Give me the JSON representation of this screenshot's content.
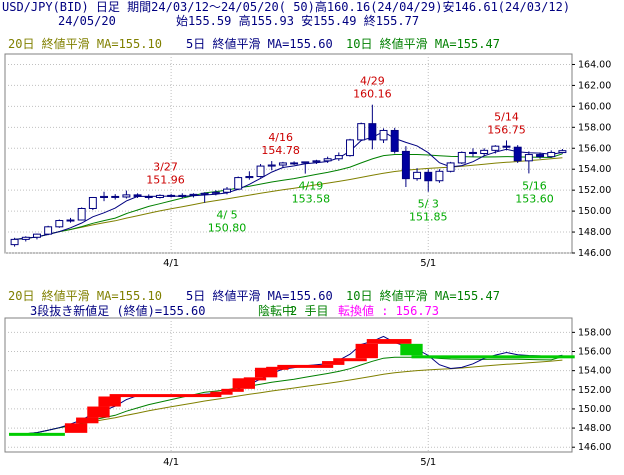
{
  "header": {
    "line1": "USD/JPY(BID) 日足 期間24/03/12～24/05/20( 50)高160.16(24/04/29)安146.61(24/03/12)",
    "line2": "24/05/20",
    "line2_ohlc": "始155.59 高155.93 安155.49 終155.77"
  },
  "legend": {
    "ma20": "20日 終値平滑 MA=155.10",
    "ma5": "5日 終値平滑 MA=155.60",
    "ma10": "10日 終値平滑 MA=155.47",
    "ma20_color": "#808000",
    "ma5_color": "#000080",
    "ma10_color": "#008000"
  },
  "lower_info": {
    "label": "3段抜き新値足 (終値)=155.60",
    "status": "陰転中",
    "count": "2 手目",
    "reversal": "転換値 : 156.73",
    "label_color": "#000080",
    "status_color": "#008000",
    "reversal_color": "#ff00ff"
  },
  "chart_data": [
    {
      "type": "candlestick",
      "x_tick_labels": [
        "4/1",
        "5/1"
      ],
      "y_tick_labels": [
        "146.00",
        "148.00",
        "150.00",
        "152.00",
        "154.00",
        "156.00",
        "158.00",
        "160.00",
        "162.00",
        "164.00"
      ],
      "ylim": [
        146,
        165
      ],
      "ohlc": [
        [
          146.8,
          147.45,
          146.61,
          147.3
        ],
        [
          147.3,
          147.6,
          147.1,
          147.5
        ],
        [
          147.5,
          147.85,
          147.3,
          147.8
        ],
        [
          147.8,
          148.6,
          147.7,
          148.5
        ],
        [
          148.5,
          149.2,
          148.4,
          149.1
        ],
        [
          149.1,
          149.35,
          148.9,
          149.15
        ],
        [
          149.15,
          150.35,
          149.1,
          150.25
        ],
        [
          150.25,
          151.35,
          150.1,
          151.3
        ],
        [
          151.3,
          151.85,
          150.95,
          151.4
        ],
        [
          151.4,
          151.62,
          151.1,
          151.35
        ],
        [
          151.35,
          151.96,
          151.2,
          151.55
        ],
        [
          151.55,
          151.7,
          151.25,
          151.4
        ],
        [
          151.4,
          151.6,
          151.1,
          151.3
        ],
        [
          151.3,
          151.6,
          151.2,
          151.5
        ],
        [
          151.5,
          151.65,
          151.3,
          151.4
        ],
        [
          151.4,
          151.7,
          151.2,
          151.5
        ],
        [
          151.5,
          151.7,
          151.3,
          151.6
        ],
        [
          151.6,
          151.8,
          150.8,
          151.7
        ],
        [
          151.7,
          152.0,
          151.5,
          151.8
        ],
        [
          151.8,
          152.3,
          151.6,
          152.1
        ],
        [
          152.1,
          153.3,
          152.0,
          153.2
        ],
        [
          153.2,
          153.8,
          153.0,
          153.3
        ],
        [
          153.3,
          154.5,
          153.2,
          154.3
        ],
        [
          154.3,
          154.78,
          153.9,
          154.4
        ],
        [
          154.4,
          154.7,
          154.1,
          154.6
        ],
        [
          154.6,
          154.75,
          154.4,
          154.6
        ],
        [
          154.6,
          154.72,
          153.58,
          154.7
        ],
        [
          154.7,
          154.9,
          154.5,
          154.8
        ],
        [
          154.8,
          155.2,
          154.6,
          155.0
        ],
        [
          155.0,
          155.6,
          154.8,
          155.3
        ],
        [
          155.3,
          156.9,
          155.2,
          156.8
        ],
        [
          156.8,
          158.45,
          156.7,
          158.35
        ],
        [
          158.35,
          160.16,
          155.9,
          156.8
        ],
        [
          156.8,
          157.9,
          156.5,
          157.7
        ],
        [
          157.7,
          157.95,
          155.5,
          155.7
        ],
        [
          155.7,
          156.2,
          152.3,
          153.1
        ],
        [
          153.1,
          154.1,
          152.9,
          153.7
        ],
        [
          153.7,
          154.0,
          151.85,
          152.9
        ],
        [
          152.9,
          154.0,
          152.7,
          153.8
        ],
        [
          153.8,
          154.7,
          153.7,
          154.6
        ],
        [
          154.6,
          155.7,
          154.5,
          155.6
        ],
        [
          155.6,
          156.0,
          155.2,
          155.5
        ],
        [
          155.5,
          156.0,
          155.3,
          155.8
        ],
        [
          155.8,
          156.3,
          155.5,
          156.2
        ],
        [
          156.2,
          156.75,
          155.8,
          156.1
        ],
        [
          156.1,
          156.3,
          154.6,
          154.8
        ],
        [
          154.8,
          155.7,
          153.6,
          155.4
        ],
        [
          155.4,
          155.6,
          155.0,
          155.2
        ],
        [
          155.2,
          155.8,
          155.1,
          155.6
        ],
        [
          155.59,
          155.93,
          155.49,
          155.77
        ]
      ],
      "ma5": [
        147.3,
        147.4,
        147.53,
        147.78,
        148.04,
        148.41,
        148.86,
        149.46,
        149.84,
        150.29,
        150.97,
        151.4,
        151.4,
        151.42,
        151.43,
        151.42,
        151.46,
        151.54,
        151.6,
        151.74,
        152.08,
        152.56,
        153.12,
        153.72,
        154.16,
        154.32,
        154.52,
        154.62,
        154.74,
        155.08,
        155.72,
        156.74,
        157.05,
        157.58,
        156.94,
        156.56,
        156.23,
        155.58,
        154.62,
        154.22,
        154.34,
        154.72,
        155.28,
        155.62,
        155.9,
        155.66,
        155.58,
        155.54,
        155.42,
        155.6
      ],
      "ma10": [
        147.3,
        147.4,
        147.53,
        147.78,
        148.04,
        148.24,
        148.52,
        148.84,
        149.09,
        149.33,
        149.76,
        150.11,
        150.45,
        150.71,
        150.97,
        151.24,
        151.48,
        151.74,
        151.86,
        152.01,
        152.22,
        152.38,
        152.58,
        152.78,
        152.94,
        153.1,
        153.3,
        153.5,
        153.7,
        153.92,
        154.2,
        154.6,
        154.98,
        155.3,
        155.4,
        155.4,
        155.4,
        155.36,
        155.28,
        155.22,
        155.2,
        155.18,
        155.17,
        155.18,
        155.2,
        155.18,
        155.16,
        155.14,
        155.12,
        155.47
      ],
      "ma20": [
        147.3,
        147.4,
        147.53,
        147.78,
        148.04,
        148.24,
        148.45,
        148.68,
        148.88,
        149.07,
        149.33,
        149.56,
        149.8,
        150.02,
        150.22,
        150.42,
        150.62,
        150.83,
        151.0,
        151.17,
        151.35,
        151.53,
        151.7,
        151.87,
        152.03,
        152.19,
        152.35,
        152.51,
        152.67,
        152.84,
        153.02,
        153.22,
        153.42,
        153.62,
        153.78,
        153.9,
        154.0,
        154.08,
        154.14,
        154.2,
        154.28,
        154.38,
        154.48,
        154.58,
        154.66,
        154.74,
        154.82,
        154.9,
        155.0,
        155.1
      ],
      "annotations": [
        {
          "text": "3/27",
          "color": "#cc0000",
          "i": 13.5,
          "v": 151.96,
          "pos": "above-date"
        },
        {
          "text": "151.96",
          "color": "#cc0000",
          "i": 13.5,
          "v": 151.96,
          "pos": "above-value"
        },
        {
          "text": "4/ 5",
          "color": "#00aa00",
          "i": 19,
          "v": 150.8,
          "pos": "below-date"
        },
        {
          "text": "150.80",
          "color": "#00aa00",
          "i": 19,
          "v": 150.8,
          "pos": "below-value"
        },
        {
          "text": "4/16",
          "color": "#cc0000",
          "i": 23.8,
          "v": 154.78,
          "pos": "above-date"
        },
        {
          "text": "154.78",
          "color": "#cc0000",
          "i": 23.8,
          "v": 154.78,
          "pos": "above-value"
        },
        {
          "text": "4/19",
          "color": "#00aa00",
          "i": 26.5,
          "v": 153.58,
          "pos": "below-date"
        },
        {
          "text": "153.58",
          "color": "#00aa00",
          "i": 26.5,
          "v": 153.58,
          "pos": "below-value"
        },
        {
          "text": "4/29",
          "color": "#cc0000",
          "i": 32,
          "v": 160.16,
          "pos": "above-date"
        },
        {
          "text": "160.16",
          "color": "#cc0000",
          "i": 32,
          "v": 160.16,
          "pos": "above-value"
        },
        {
          "text": "5/ 3",
          "color": "#00aa00",
          "i": 37,
          "v": 151.85,
          "pos": "below-date"
        },
        {
          "text": "151.85",
          "color": "#00aa00",
          "i": 37,
          "v": 151.85,
          "pos": "below-value"
        },
        {
          "text": "5/14",
          "color": "#cc0000",
          "i": 44,
          "v": 156.75,
          "pos": "above-date"
        },
        {
          "text": "156.75",
          "color": "#cc0000",
          "i": 44,
          "v": 156.75,
          "pos": "above-value"
        },
        {
          "text": "5/16",
          "color": "#00aa00",
          "i": 46.5,
          "v": 153.6,
          "pos": "below-date"
        },
        {
          "text": "153.60",
          "color": "#00aa00",
          "i": 46.5,
          "v": 153.6,
          "pos": "below-value"
        }
      ]
    },
    {
      "type": "three-line-break",
      "x_tick_labels": [
        "4/1",
        "5/1"
      ],
      "y_tick_labels": [
        "146.00",
        "148.00",
        "150.00",
        "152.00",
        "154.00",
        "156.00",
        "158.00"
      ],
      "ylim": [
        145.5,
        159.5
      ],
      "bricks": [
        {
          "s": 0,
          "e": 4,
          "lo": 147.3,
          "hi": 147.5,
          "dir": "down"
        },
        {
          "s": 5,
          "e": 6,
          "lo": 147.5,
          "hi": 148.5,
          "dir": "up"
        },
        {
          "s": 6,
          "e": 7,
          "lo": 148.5,
          "hi": 149.1,
          "dir": "up"
        },
        {
          "s": 7,
          "e": 8,
          "lo": 149.1,
          "hi": 150.25,
          "dir": "up"
        },
        {
          "s": 8,
          "e": 9,
          "lo": 150.25,
          "hi": 151.3,
          "dir": "up"
        },
        {
          "s": 9,
          "e": 18,
          "lo": 151.3,
          "hi": 151.55,
          "dir": "up"
        },
        {
          "s": 18,
          "e": 19,
          "lo": 151.55,
          "hi": 151.8,
          "dir": "up"
        },
        {
          "s": 19,
          "e": 20,
          "lo": 151.8,
          "hi": 152.1,
          "dir": "up"
        },
        {
          "s": 20,
          "e": 21,
          "lo": 152.1,
          "hi": 153.2,
          "dir": "up"
        },
        {
          "s": 21,
          "e": 22,
          "lo": 153.2,
          "hi": 153.3,
          "dir": "up"
        },
        {
          "s": 22,
          "e": 23,
          "lo": 153.3,
          "hi": 154.3,
          "dir": "up"
        },
        {
          "s": 23,
          "e": 24,
          "lo": 154.3,
          "hi": 154.4,
          "dir": "up"
        },
        {
          "s": 24,
          "e": 28,
          "lo": 154.4,
          "hi": 154.6,
          "dir": "up"
        },
        {
          "s": 28,
          "e": 29,
          "lo": 154.6,
          "hi": 155.0,
          "dir": "up"
        },
        {
          "s": 29,
          "e": 31,
          "lo": 155.0,
          "hi": 155.3,
          "dir": "up"
        },
        {
          "s": 31,
          "e": 32,
          "lo": 155.3,
          "hi": 156.8,
          "dir": "up"
        },
        {
          "s": 32,
          "e": 35,
          "lo": 156.8,
          "hi": 157.3,
          "dir": "up"
        },
        {
          "s": 35,
          "e": 36,
          "lo": 155.6,
          "hi": 156.8,
          "dir": "down"
        },
        {
          "s": 36,
          "e": 49.6,
          "lo": 155.4,
          "hi": 155.6,
          "dir": "down"
        }
      ],
      "colors": {
        "up": "#ff0000",
        "down": "#00cc00"
      }
    }
  ]
}
